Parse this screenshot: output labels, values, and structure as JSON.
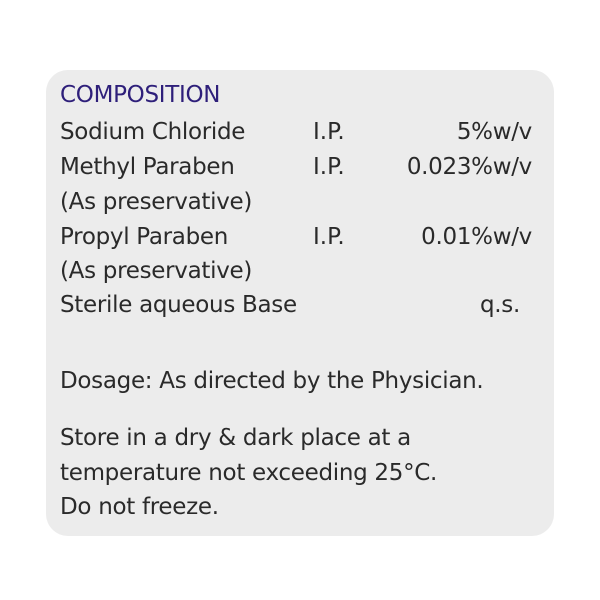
{
  "composition": {
    "title": "COMPOSITION",
    "rows": [
      {
        "name": "Sodium Chloride",
        "grade": "I.P.",
        "value": "5%w/v"
      },
      {
        "name": "Methyl Paraben",
        "grade": "I.P.",
        "value": "0.023%w/v"
      },
      {
        "name": "(As preservative)"
      },
      {
        "name": "Propyl Paraben",
        "grade": "I.P.",
        "value": "0.01%w/v"
      },
      {
        "name": "(As preservative)"
      },
      {
        "name": "Sterile aqueous Base",
        "value": "q.s."
      }
    ]
  },
  "dosage": "Dosage: As directed by the Physician.",
  "storage": [
    "Store in a dry & dark place at a",
    "temperature not exceeding 25°C.",
    "Do not freeze."
  ],
  "colors": {
    "title": "#2e1f7a",
    "text": "#2a2a2a",
    "label_bg": "#ececec"
  }
}
